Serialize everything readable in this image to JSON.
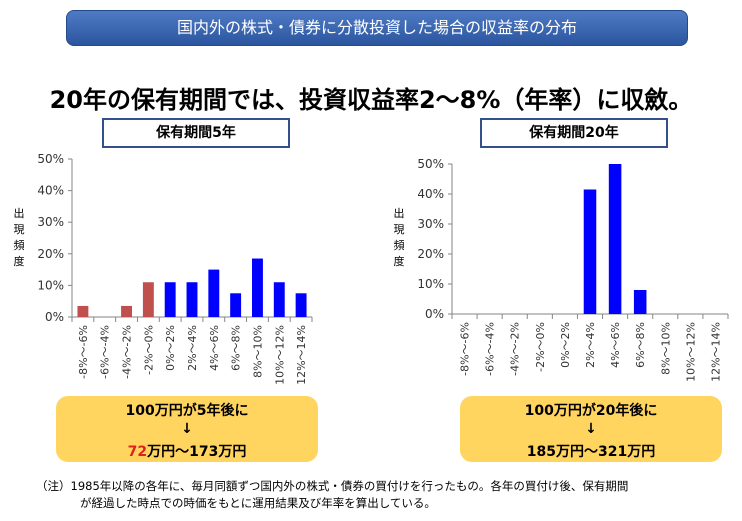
{
  "banner": "国内外の株式・債券に分散投資した場合の収益率の分布",
  "headline": "20年の保有期間では、投資収益率2～8%（年率）に収斂。",
  "y_axis_label": "出現頻度",
  "charts": [
    {
      "panel_title": "保有期間5年",
      "callout": {
        "line1": "100万円が5年後に",
        "arrow": "↓",
        "value_red": "72",
        "value_rest": "万円～173万円"
      }
    },
    {
      "panel_title": "保有期間20年",
      "callout": {
        "line1": "100万円が20年後に",
        "arrow": "↓",
        "value_red": "",
        "value_rest": "185万円～321万円"
      }
    }
  ],
  "chart_data": [
    {
      "type": "bar",
      "title": "保有期間5年",
      "ylabel": "出現頻度",
      "ylim": [
        0,
        50
      ],
      "yticks": [
        "0%",
        "10%",
        "20%",
        "30%",
        "40%",
        "50%"
      ],
      "grid": false,
      "categories": [
        "-8%～-6%",
        "-6%～-4%",
        "-4%～-2%",
        "-2%～0%",
        "0%～2%",
        "2%～4%",
        "4%～6%",
        "6%～8%",
        "8%～10%",
        "10%～12%",
        "12%～14%"
      ],
      "values": [
        3.5,
        0,
        3.5,
        11,
        11,
        11,
        15,
        7.5,
        18.5,
        11,
        7.5
      ],
      "bar_colors": [
        "#c0504d",
        "#c0504d",
        "#c0504d",
        "#c0504d",
        "#0000ff",
        "#0000ff",
        "#0000ff",
        "#0000ff",
        "#0000ff",
        "#0000ff",
        "#0000ff"
      ]
    },
    {
      "type": "bar",
      "title": "保有期間20年",
      "ylabel": "出現頻度",
      "ylim": [
        0,
        50
      ],
      "yticks": [
        "0%",
        "10%",
        "20%",
        "30%",
        "40%",
        "50%"
      ],
      "grid": false,
      "categories": [
        "-8%～-6%",
        "-6%～-4%",
        "-4%～-2%",
        "-2%～0%",
        "0%～2%",
        "2%～4%",
        "4%～6%",
        "6%～8%",
        "8%～10%",
        "10%～12%",
        "12%～14%"
      ],
      "values": [
        0,
        0,
        0,
        0,
        0,
        41.5,
        50,
        8,
        0,
        0,
        0
      ],
      "bar_colors": [
        "#0000ff",
        "#0000ff",
        "#0000ff",
        "#0000ff",
        "#0000ff",
        "#0000ff",
        "#0000ff",
        "#0000ff",
        "#0000ff",
        "#0000ff",
        "#0000ff"
      ]
    }
  ],
  "note": {
    "line1": "（注）1985年以降の各年に、毎月同額ずつ国内外の株式・債券の買付けを行ったもの。各年の買付け後、保有期間",
    "line2": "が経過した時点での時価をもとに運用結果及び年率を算出している。"
  }
}
